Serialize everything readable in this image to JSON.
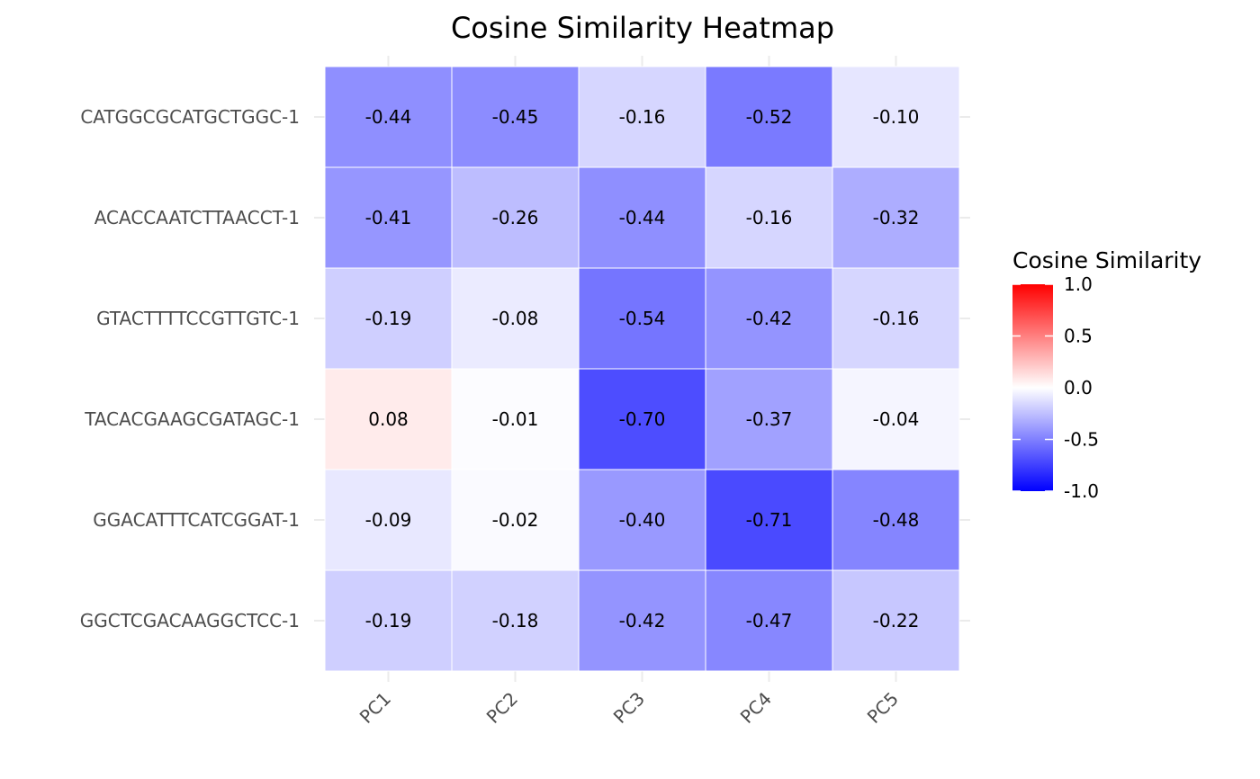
{
  "chart_data": {
    "type": "heatmap",
    "title": "Cosine Similarity Heatmap",
    "xlabel": "",
    "ylabel": "",
    "x_categories": [
      "PC1",
      "PC2",
      "PC3",
      "PC4",
      "PC5"
    ],
    "y_categories": [
      "CATGGCGCATGCTGGC-1",
      "ACACCAATCTTAACCT-1",
      "GTACTTTTCCGTTGTC-1",
      "TACACGAAGCGATAGC-1",
      "GGACATTTCATCGGAT-1",
      "GGCTCGACAAGGCTCC-1"
    ],
    "values": [
      [
        -0.44,
        -0.45,
        -0.16,
        -0.52,
        -0.1
      ],
      [
        -0.41,
        -0.26,
        -0.44,
        -0.16,
        -0.32
      ],
      [
        -0.19,
        -0.08,
        -0.54,
        -0.42,
        -0.16
      ],
      [
        0.08,
        -0.01,
        -0.7,
        -0.37,
        -0.04
      ],
      [
        -0.09,
        -0.02,
        -0.4,
        -0.71,
        -0.48
      ],
      [
        -0.19,
        -0.18,
        -0.42,
        -0.47,
        -0.22
      ]
    ],
    "value_labels": [
      [
        "-0.44",
        "-0.45",
        "-0.16",
        "-0.52",
        "-0.10"
      ],
      [
        "-0.41",
        "-0.26",
        "-0.44",
        "-0.16",
        "-0.32"
      ],
      [
        "-0.19",
        "-0.08",
        "-0.54",
        "-0.42",
        "-0.16"
      ],
      [
        "0.08",
        "-0.01",
        "-0.70",
        "-0.37",
        "-0.04"
      ],
      [
        "-0.09",
        "-0.02",
        "-0.40",
        "-0.71",
        "-0.48"
      ],
      [
        "-0.19",
        "-0.18",
        "-0.42",
        "-0.47",
        "-0.22"
      ]
    ],
    "color_scale": {
      "low": "#0000ff",
      "mid": "#ffffff",
      "high": "#ff0000",
      "limits": [
        -1.0,
        1.0
      ]
    },
    "legend": {
      "title": "Cosine Similarity",
      "position": "right",
      "ticks": [
        1.0,
        0.5,
        0.0,
        -0.5,
        -1.0
      ],
      "tick_labels": [
        "1.0",
        "0.5",
        "0.0",
        "-0.5",
        "-1.0"
      ]
    },
    "grid": true
  }
}
